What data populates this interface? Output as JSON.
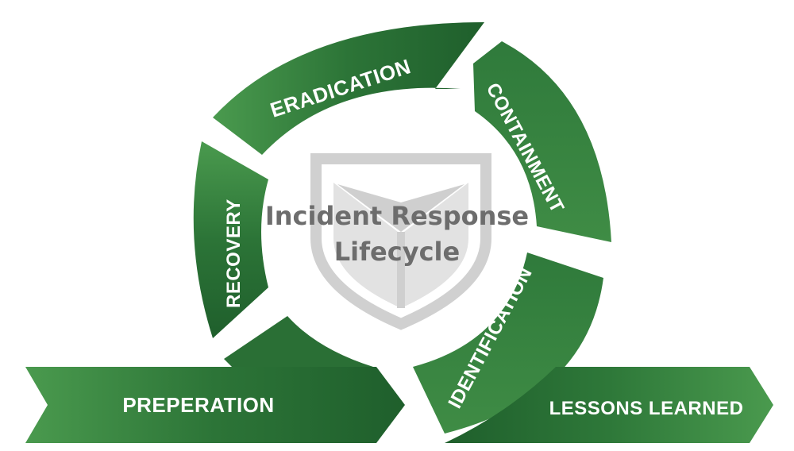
{
  "title": {
    "line1": "Incident Response",
    "line2": "Lifecycle"
  },
  "phases": {
    "preparation": "PREPERATION",
    "recovery": "RECOVERY",
    "eradication": "ERADICATION",
    "containment": "CONTAINMENT",
    "identification": "IDENTIFICATION",
    "lessons": "LESSONS LEARNED"
  },
  "colors": {
    "green_dark": "#1e5e2c",
    "green_mid": "#2f7a3b",
    "green_light": "#4c9a4f",
    "shield": "#c8c8c8",
    "text_gray": "#6d6d6d"
  }
}
